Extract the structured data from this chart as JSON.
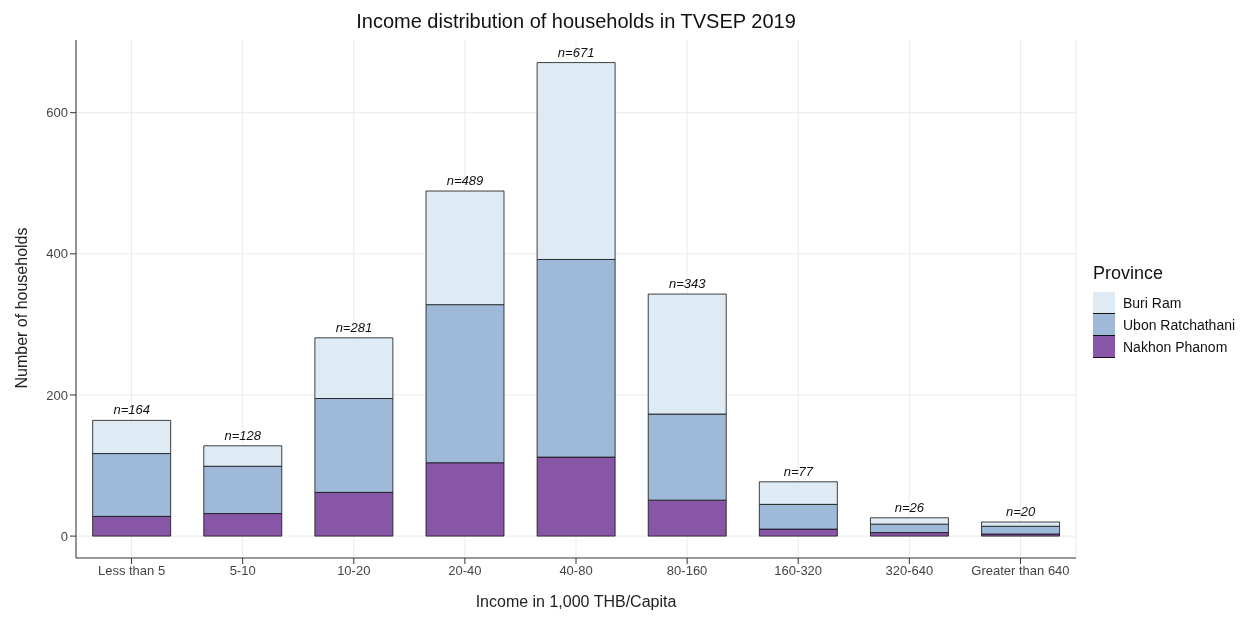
{
  "chart_data": {
    "type": "bar",
    "title": "Income distribution of households in TVSEP 2019",
    "xlabel": "Income in 1,000 THB/Capita",
    "ylabel": "Number of households",
    "legend_title": "Province",
    "categories": [
      "Less than 5",
      "5-10",
      "10-20",
      "20-40",
      "40-80",
      "80-160",
      "160-320",
      "320-640",
      "Greater than 640"
    ],
    "series": [
      {
        "name": "Nakhon Phanom",
        "color": "#8856a7",
        "values": [
          28,
          32,
          62,
          104,
          112,
          51,
          10,
          5,
          3
        ]
      },
      {
        "name": "Ubon Ratchathani",
        "color": "#9ebad8",
        "values": [
          89,
          67,
          133,
          224,
          280,
          122,
          35,
          12,
          11
        ]
      },
      {
        "name": "Buri Ram",
        "color": "#deebf4",
        "values": [
          47,
          29,
          86,
          161,
          279,
          170,
          32,
          9,
          6
        ]
      }
    ],
    "stacked": true,
    "totals": [
      "n=164",
      "n=128",
      "n=281",
      "n=489",
      "n=671",
      "n=343",
      "n=77",
      "n=26",
      "n=20"
    ],
    "ylim": [
      -31,
      703
    ],
    "yticks": [
      0,
      200,
      400,
      600
    ],
    "grid": true,
    "legend": "right"
  }
}
